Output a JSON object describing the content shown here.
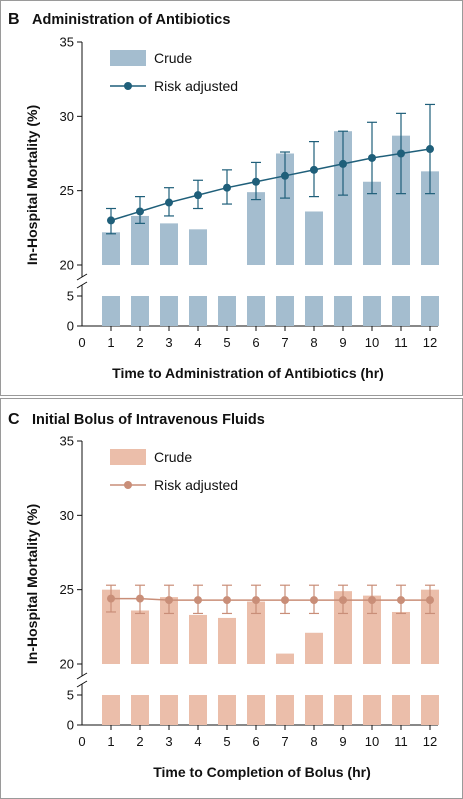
{
  "chart_data": [
    {
      "panel": "B",
      "type": "bar",
      "title": "Administration of Antibiotics",
      "xlabel": "Time to Administration of Antibiotics (hr)",
      "ylabel": "In-Hospital Mortality (%)",
      "x_ticks": [
        "0",
        "1",
        "2",
        "3",
        "4",
        "5",
        "6",
        "7",
        "8",
        "9",
        "10",
        "11",
        "12"
      ],
      "y_ticks": [
        "0",
        "5",
        "20",
        "25",
        "30",
        "35"
      ],
      "ylim_lower": [
        0,
        6
      ],
      "ylim_upper": [
        20,
        35
      ],
      "axis_break": true,
      "legend_placement": "top-left",
      "categories": [
        1,
        2,
        3,
        4,
        5,
        6,
        7,
        8,
        9,
        10,
        11,
        12
      ],
      "series": [
        {
          "name": "Crude",
          "kind": "bar",
          "values": [
            22.2,
            23.3,
            22.8,
            22.4,
            null,
            24.9,
            27.5,
            23.6,
            29.0,
            25.6,
            28.7,
            26.3
          ]
        },
        {
          "name": "Risk adjusted",
          "kind": "line",
          "values": [
            23.0,
            23.6,
            24.2,
            24.7,
            25.2,
            25.6,
            26.0,
            26.4,
            26.8,
            27.2,
            27.5,
            27.8
          ],
          "ci_lower": [
            22.1,
            22.8,
            23.3,
            23.8,
            24.1,
            24.4,
            24.5,
            24.6,
            24.7,
            24.8,
            24.8,
            24.8
          ],
          "ci_upper": [
            23.8,
            24.6,
            25.2,
            25.7,
            26.4,
            26.9,
            27.6,
            28.3,
            29.0,
            29.6,
            30.2,
            30.8
          ]
        }
      ],
      "colors": {
        "bar": "#a4bdcf",
        "line": "#1f5f7a"
      }
    },
    {
      "panel": "C",
      "type": "bar",
      "title": "Initial Bolus of Intravenous Fluids",
      "xlabel": "Time to Completion of Bolus (hr)",
      "ylabel": "In-Hospital Mortality (%)",
      "x_ticks": [
        "0",
        "1",
        "2",
        "3",
        "4",
        "5",
        "6",
        "7",
        "8",
        "9",
        "10",
        "11",
        "12"
      ],
      "y_ticks": [
        "0",
        "5",
        "20",
        "25",
        "30",
        "35"
      ],
      "ylim_lower": [
        0,
        6
      ],
      "ylim_upper": [
        20,
        35
      ],
      "axis_break": true,
      "legend_placement": "top-left",
      "categories": [
        1,
        2,
        3,
        4,
        5,
        6,
        7,
        8,
        9,
        10,
        11,
        12
      ],
      "series": [
        {
          "name": "Crude",
          "kind": "bar",
          "values": [
            25.0,
            23.6,
            24.5,
            23.3,
            23.1,
            24.2,
            20.7,
            22.1,
            24.9,
            24.6,
            23.5,
            25.0
          ]
        },
        {
          "name": "Risk adjusted",
          "kind": "line",
          "values": [
            24.4,
            24.4,
            24.3,
            24.3,
            24.3,
            24.3,
            24.3,
            24.3,
            24.3,
            24.3,
            24.3,
            24.3
          ],
          "ci_lower": [
            23.5,
            23.4,
            23.4,
            23.4,
            23.4,
            23.4,
            23.4,
            23.4,
            23.4,
            23.4,
            23.4,
            23.4
          ],
          "ci_upper": [
            25.3,
            25.3,
            25.3,
            25.3,
            25.3,
            25.3,
            25.3,
            25.3,
            25.3,
            25.3,
            25.3,
            25.3
          ]
        }
      ],
      "colors": {
        "bar": "#ebbeaa",
        "line": "#c98e78"
      }
    }
  ]
}
